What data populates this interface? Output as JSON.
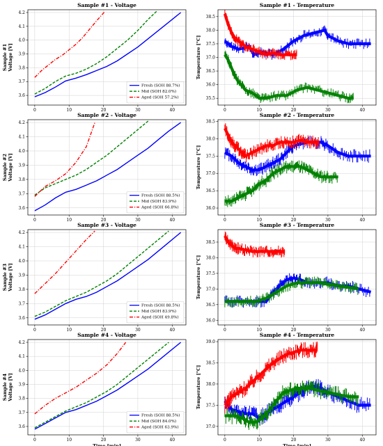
{
  "chart_data": [
    {
      "id": "v1",
      "type": "line",
      "title": "Sample #1 - Voltage",
      "ylabel": [
        "Sample #1",
        "Voltage [V]"
      ],
      "xlabel": "",
      "xlim": [
        -2,
        44
      ],
      "ylim": [
        3.53,
        4.22
      ],
      "xticks": [
        0,
        10,
        20,
        30,
        40
      ],
      "yticks": [
        3.6,
        3.7,
        3.8,
        3.9,
        4.0,
        4.1,
        4.2
      ],
      "grid": true,
      "legend": "bottom-right",
      "series": [
        {
          "name": "Fresh (SOH 88.7%)",
          "color": "#0000ff",
          "dash": "solid",
          "x": [
            0,
            3,
            6,
            9,
            12,
            15,
            18,
            21,
            24,
            27,
            30,
            33,
            36,
            39,
            42.5
          ],
          "y": [
            3.59,
            3.62,
            3.66,
            3.705,
            3.725,
            3.75,
            3.78,
            3.81,
            3.85,
            3.9,
            3.95,
            4.01,
            4.07,
            4.13,
            4.2
          ]
        },
        {
          "name": "Mid (SOH 82.0%)",
          "color": "#008000",
          "dash": "dashed",
          "x": [
            0,
            3,
            6,
            9,
            12,
            15,
            18,
            21,
            24,
            27,
            30,
            33,
            35.5
          ],
          "y": [
            3.61,
            3.65,
            3.7,
            3.74,
            3.76,
            3.79,
            3.83,
            3.88,
            3.94,
            4.0,
            4.07,
            4.15,
            4.21
          ]
        },
        {
          "name": "Aged (SOH 57.2%)",
          "color": "#ff0000",
          "dash": "dashdot",
          "x": [
            0,
            2,
            4,
            6,
            8,
            10,
            12,
            14,
            16,
            18,
            20.5
          ],
          "y": [
            3.73,
            3.78,
            3.82,
            3.86,
            3.89,
            3.93,
            3.97,
            4.02,
            4.08,
            4.14,
            4.21
          ]
        }
      ]
    },
    {
      "id": "t1",
      "type": "line",
      "title": "Sample #1 - Temperature",
      "ylabel": [
        "Temperature [°C]"
      ],
      "xlabel": "",
      "xlim": [
        -2,
        44
      ],
      "ylim": [
        35.25,
        38.75
      ],
      "xticks": [
        0,
        10,
        20,
        30,
        40
      ],
      "yticks": [
        35.5,
        36.0,
        36.5,
        37.0,
        37.5,
        38.0,
        38.5
      ],
      "grid": true,
      "legend": "none",
      "series": [
        {
          "color": "#0000ff",
          "x": [
            0,
            2,
            4,
            7,
            8.5,
            11,
            14,
            17,
            20,
            23,
            26,
            29,
            30,
            33,
            36,
            39,
            42.5
          ],
          "y": [
            37.6,
            37.4,
            37.3,
            37.4,
            37.1,
            37.2,
            37.1,
            37.3,
            37.6,
            37.8,
            37.9,
            38.0,
            37.8,
            37.6,
            37.5,
            37.5,
            37.5
          ]
        },
        {
          "color": "#008000",
          "x": [
            0,
            1,
            2,
            3,
            4,
            6,
            8,
            10,
            12,
            15,
            18,
            21,
            24,
            27,
            30,
            33,
            36,
            37.5
          ],
          "y": [
            37.1,
            36.9,
            36.6,
            36.3,
            36.1,
            35.8,
            35.7,
            35.5,
            35.5,
            35.6,
            35.6,
            35.8,
            35.9,
            35.8,
            35.7,
            35.6,
            35.5,
            35.5
          ]
        },
        {
          "color": "#ff0000",
          "x": [
            0,
            1,
            2,
            3,
            4,
            5,
            6,
            8,
            10,
            12,
            14,
            16,
            18,
            20,
            21
          ],
          "y": [
            38.6,
            38.2,
            37.9,
            37.7,
            37.6,
            37.5,
            37.4,
            37.3,
            37.2,
            37.1,
            37.15,
            37.1,
            37.1,
            37.1,
            37.1
          ]
        }
      ]
    },
    {
      "id": "v2",
      "type": "line",
      "title": "Sample #2 - Voltage",
      "ylabel": [
        "Sample #2",
        "Voltage [V]"
      ],
      "xlabel": "",
      "xlim": [
        -2,
        44
      ],
      "ylim": [
        3.55,
        4.22
      ],
      "xticks": [
        0,
        10,
        20,
        30,
        40
      ],
      "yticks": [
        3.6,
        3.7,
        3.8,
        3.9,
        4.0,
        4.1,
        4.2
      ],
      "grid": true,
      "legend": "bottom-right",
      "series": [
        {
          "name": "Fresh (SOH 88.5%)",
          "color": "#0000ff",
          "dash": "solid",
          "x": [
            0,
            3,
            6,
            9,
            12,
            15,
            18,
            21,
            24,
            27,
            30,
            33,
            36,
            39,
            42.5
          ],
          "y": [
            3.58,
            3.62,
            3.67,
            3.71,
            3.73,
            3.76,
            3.79,
            3.83,
            3.87,
            3.92,
            3.97,
            4.02,
            4.08,
            4.14,
            4.2
          ]
        },
        {
          "name": "Mid (SOH 83.9%)",
          "color": "#008000",
          "dash": "dashed",
          "x": [
            0,
            3,
            6,
            9,
            12,
            15,
            18,
            21,
            24,
            27,
            30,
            33
          ],
          "y": [
            3.69,
            3.74,
            3.77,
            3.8,
            3.83,
            3.87,
            3.92,
            3.97,
            4.03,
            4.09,
            4.15,
            4.21
          ]
        },
        {
          "name": "Aged (SOH 66.8%)",
          "color": "#ff0000",
          "dash": "dashdot",
          "x": [
            0,
            3,
            6,
            9,
            12,
            15,
            17.5
          ],
          "y": [
            3.68,
            3.75,
            3.79,
            3.84,
            3.92,
            4.03,
            4.2
          ]
        }
      ]
    },
    {
      "id": "t2",
      "type": "line",
      "title": "Sample #2 - Temperature",
      "ylabel": [
        "Temperature [°C]"
      ],
      "xlabel": "",
      "xlim": [
        -2,
        44
      ],
      "ylim": [
        35.8,
        38.55
      ],
      "xticks": [
        0,
        10,
        20,
        30,
        40
      ],
      "yticks": [
        36.0,
        36.5,
        37.0,
        37.5,
        38.0,
        38.5
      ],
      "grid": true,
      "legend": "none",
      "series": [
        {
          "color": "#0000ff",
          "x": [
            0,
            2,
            4,
            6,
            8,
            10,
            12,
            14,
            16,
            18,
            20,
            24,
            28,
            30,
            33,
            36,
            39,
            42.5
          ],
          "y": [
            37.6,
            37.5,
            37.3,
            37.2,
            37.1,
            37.1,
            37.2,
            37.3,
            37.4,
            37.6,
            37.8,
            37.9,
            37.9,
            37.8,
            37.6,
            37.5,
            37.5,
            37.5
          ]
        },
        {
          "color": "#008000",
          "x": [
            0,
            2,
            4,
            6,
            8,
            10,
            12,
            14,
            16,
            18,
            20,
            22,
            24,
            26,
            28,
            30,
            33
          ],
          "y": [
            36.2,
            36.2,
            36.3,
            36.4,
            36.5,
            36.7,
            36.8,
            37.0,
            37.1,
            37.2,
            37.2,
            37.2,
            37.1,
            37.0,
            36.9,
            36.9,
            36.9
          ]
        },
        {
          "color": "#ff0000",
          "x": [
            0,
            1,
            2,
            3,
            4,
            5,
            6,
            8,
            10,
            12,
            14,
            16,
            18,
            20,
            22,
            24,
            26,
            27.5
          ],
          "y": [
            38.3,
            38.1,
            37.9,
            37.8,
            37.7,
            37.6,
            37.5,
            37.6,
            37.7,
            37.8,
            37.8,
            37.9,
            37.9,
            37.9,
            37.95,
            37.9,
            37.9,
            37.9
          ]
        }
      ]
    },
    {
      "id": "v3",
      "type": "line",
      "title": "Sample #3 - Voltage",
      "ylabel": [
        "Sample #3",
        "Voltage [V]"
      ],
      "xlabel": "",
      "xlim": [
        -2,
        44
      ],
      "ylim": [
        3.55,
        4.22
      ],
      "xticks": [
        0,
        10,
        20,
        30,
        40
      ],
      "yticks": [
        3.6,
        3.7,
        3.8,
        3.9,
        4.0,
        4.1,
        4.2
      ],
      "grid": true,
      "legend": "bottom-right",
      "series": [
        {
          "name": "Fresh (SOH 88.5%)",
          "color": "#0000ff",
          "dash": "solid",
          "x": [
            0,
            3,
            6,
            9,
            12,
            15,
            18,
            21,
            24,
            27,
            30,
            33,
            36,
            39,
            42.5
          ],
          "y": [
            3.59,
            3.62,
            3.66,
            3.7,
            3.73,
            3.75,
            3.78,
            3.82,
            3.86,
            3.91,
            3.96,
            4.01,
            4.07,
            4.13,
            4.2
          ]
        },
        {
          "name": "Mid (SOH 83.9%)",
          "color": "#008000",
          "dash": "dashed",
          "x": [
            0,
            3,
            6,
            9,
            12,
            15,
            18,
            21,
            24,
            27,
            30,
            33,
            36,
            39
          ],
          "y": [
            3.61,
            3.64,
            3.68,
            3.72,
            3.75,
            3.78,
            3.82,
            3.86,
            3.91,
            3.97,
            4.03,
            4.09,
            4.15,
            4.21
          ]
        },
        {
          "name": "Aged (SOH 49.8%)",
          "color": "#ff0000",
          "dash": "dashdot",
          "x": [
            0,
            3,
            6,
            9,
            12,
            15,
            17.5
          ],
          "y": [
            3.77,
            3.84,
            3.91,
            3.99,
            4.07,
            4.15,
            4.21
          ]
        }
      ]
    },
    {
      "id": "t3",
      "type": "line",
      "title": "Sample #3 - Temperature",
      "ylabel": [
        "Temperature [°C]"
      ],
      "xlabel": "",
      "xlim": [
        -2,
        44
      ],
      "ylim": [
        35.85,
        38.9
      ],
      "xticks": [
        0,
        10,
        20,
        30,
        40
      ],
      "yticks": [
        36.0,
        36.5,
        37.0,
        37.5,
        38.0,
        38.5
      ],
      "grid": true,
      "legend": "none",
      "series": [
        {
          "color": "#0000ff",
          "x": [
            0,
            3,
            6,
            9,
            12,
            14,
            16,
            18,
            20,
            22,
            24,
            27,
            30,
            33,
            36,
            39,
            42.5
          ],
          "y": [
            36.6,
            36.6,
            36.6,
            36.6,
            36.6,
            36.9,
            37.1,
            37.3,
            37.35,
            37.3,
            37.2,
            37.2,
            37.2,
            37.1,
            37.1,
            37.0,
            36.9
          ]
        },
        {
          "color": "#008000",
          "x": [
            0,
            3,
            6,
            9,
            12,
            15,
            18,
            21,
            24,
            27,
            30,
            33,
            36,
            39
          ],
          "y": [
            36.6,
            36.6,
            36.6,
            36.6,
            36.7,
            36.9,
            37.1,
            37.2,
            37.2,
            37.2,
            37.15,
            37.1,
            37.05,
            37.0
          ]
        },
        {
          "color": "#ff0000",
          "x": [
            0,
            1,
            2,
            3,
            4,
            6,
            8,
            10,
            12,
            14,
            16,
            17.5
          ],
          "y": [
            38.7,
            38.5,
            38.4,
            38.3,
            38.3,
            38.25,
            38.2,
            38.2,
            38.2,
            38.2,
            38.2,
            38.2
          ]
        }
      ]
    },
    {
      "id": "v4",
      "type": "line",
      "title": "Sample #4 - Voltage",
      "ylabel": [
        "Sample #4",
        "Voltage [V]"
      ],
      "xlabel": "Time [min]",
      "xlim": [
        -2,
        44
      ],
      "ylim": [
        3.54,
        4.22
      ],
      "xticks": [
        0,
        10,
        20,
        30,
        40
      ],
      "yticks": [
        3.6,
        3.7,
        3.8,
        3.9,
        4.0,
        4.1,
        4.2
      ],
      "grid": true,
      "legend": "bottom-right",
      "series": [
        {
          "name": "Fresh (SOH 88.5%)",
          "color": "#0000ff",
          "dash": "solid",
          "x": [
            0,
            3,
            6,
            9,
            12,
            15,
            18,
            21,
            24,
            27,
            30,
            33,
            36,
            39,
            42.5
          ],
          "y": [
            3.58,
            3.62,
            3.66,
            3.7,
            3.72,
            3.75,
            3.78,
            3.82,
            3.86,
            3.91,
            3.96,
            4.01,
            4.07,
            4.13,
            4.2
          ]
        },
        {
          "name": "Mid (SOH 84.0%)",
          "color": "#008000",
          "dash": "dashed",
          "x": [
            0,
            3,
            6,
            9,
            12,
            15,
            18,
            21,
            24,
            27,
            30,
            33,
            36,
            39
          ],
          "y": [
            3.59,
            3.63,
            3.67,
            3.71,
            3.74,
            3.77,
            3.81,
            3.85,
            3.9,
            3.96,
            4.02,
            4.08,
            4.14,
            4.2
          ]
        },
        {
          "name": "Aged (SOH 63.9%)",
          "color": "#ff0000",
          "dash": "dashdot",
          "x": [
            0,
            3,
            6,
            9,
            12,
            15,
            18,
            21,
            24,
            26.5
          ],
          "y": [
            3.69,
            3.75,
            3.8,
            3.84,
            3.88,
            3.93,
            3.98,
            4.04,
            4.12,
            4.2
          ]
        }
      ]
    },
    {
      "id": "t4",
      "type": "line",
      "title": "Sample #4 - Temperature",
      "ylabel": [
        "Temperature [°C]"
      ],
      "xlabel": "Time [min]",
      "xlim": [
        -2,
        44
      ],
      "ylim": [
        36.8,
        39.05
      ],
      "xticks": [
        0,
        10,
        20,
        30,
        40
      ],
      "yticks": [
        37.0,
        37.5,
        38.0,
        38.5,
        39.0
      ],
      "grid": true,
      "legend": "none",
      "series": [
        {
          "color": "#0000ff",
          "x": [
            0,
            2,
            4,
            6,
            8,
            10,
            12,
            14,
            16,
            18,
            20,
            22,
            24,
            26,
            28,
            30,
            33,
            36,
            39,
            42.5
          ],
          "y": [
            37.6,
            37.4,
            37.35,
            37.3,
            37.3,
            37.2,
            37.3,
            37.4,
            37.5,
            37.6,
            37.7,
            37.8,
            37.9,
            37.95,
            37.9,
            37.8,
            37.7,
            37.6,
            37.5,
            37.5
          ]
        },
        {
          "color": "#008000",
          "x": [
            0,
            3,
            5,
            7,
            9,
            11,
            13,
            15,
            17,
            19,
            21,
            23,
            25,
            27,
            30,
            33,
            36,
            39
          ],
          "y": [
            37.25,
            37.25,
            37.2,
            37.1,
            37.1,
            37.2,
            37.4,
            37.6,
            37.8,
            37.85,
            37.9,
            37.9,
            37.9,
            37.85,
            37.8,
            37.75,
            37.7,
            37.7
          ]
        },
        {
          "color": "#ff0000",
          "x": [
            0,
            1,
            2,
            4,
            6,
            8,
            10,
            12,
            14,
            16,
            18,
            20,
            22,
            24,
            26,
            27
          ],
          "y": [
            37.5,
            37.6,
            37.7,
            37.8,
            37.9,
            38.05,
            38.2,
            38.35,
            38.5,
            38.6,
            38.7,
            38.75,
            38.8,
            38.8,
            38.8,
            38.8
          ]
        }
      ]
    }
  ]
}
